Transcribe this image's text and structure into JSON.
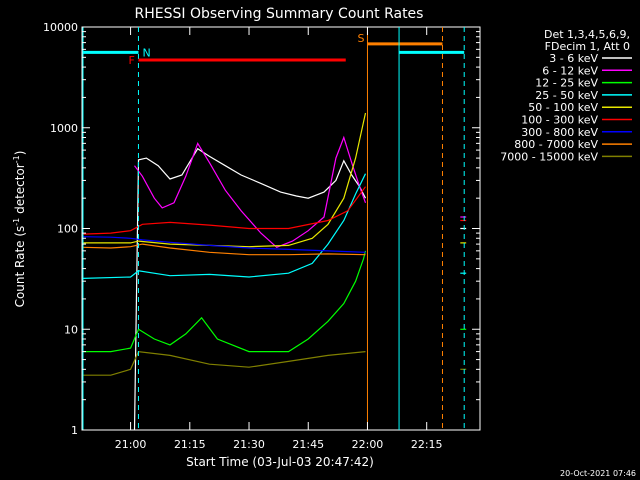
{
  "chart_data": {
    "type": "line",
    "title": "RHESSI Observing Summary Count Rates",
    "xlabel": "Start Time (03-Jul-03 20:47:42)",
    "ylabel_parts": {
      "pre": "Count Rate (s",
      "exp1": "-1",
      "mid": " detector",
      "exp2": "-1",
      "post": ")"
    },
    "y_scale": "log",
    "ylim": [
      1,
      10000
    ],
    "xlim_minutes": [
      "20:47:42",
      "22:28:30"
    ],
    "x_ticks": [
      "21:00",
      "21:15",
      "21:30",
      "21:45",
      "22:00",
      "22:15"
    ],
    "y_ticks": [
      {
        "label": "1",
        "value": 1
      },
      {
        "label": "10",
        "value": 10
      },
      {
        "label": "100",
        "value": 100
      },
      {
        "label": "1000",
        "value": 1000
      },
      {
        "label": "10000",
        "value": 10000
      }
    ],
    "legend_header": [
      "Det 1,3,4,5,6,9,",
      "FDecim 1, Att 0"
    ],
    "series": [
      {
        "name": "3 - 6 keV",
        "color": "#ffffff",
        "points": [
          [
            "21:01:00",
            1
          ],
          [
            "21:02:00",
            480
          ],
          [
            "21:04:00",
            500
          ],
          [
            "21:07:00",
            420
          ],
          [
            "21:10:00",
            310
          ],
          [
            "21:13:00",
            340
          ],
          [
            "21:17:00",
            620
          ],
          [
            "21:20:00",
            520
          ],
          [
            "21:24:00",
            420
          ],
          [
            "21:28:00",
            340
          ],
          [
            "21:33:00",
            280
          ],
          [
            "21:38:00",
            230
          ],
          [
            "21:42:00",
            210
          ],
          [
            "21:45:00",
            200
          ],
          [
            "21:49:00",
            230
          ],
          [
            "21:52:00",
            300
          ],
          [
            "21:54:00",
            470
          ],
          [
            "21:56:00",
            340
          ],
          [
            "21:58:00",
            260
          ],
          [
            "21:59:30",
            200
          ]
        ],
        "points2": [
          [
            "22:23:30",
            100
          ],
          [
            "22:25:00",
            100
          ]
        ]
      },
      {
        "name": "6 - 12 keV",
        "color": "#ff00ff",
        "points": [
          [
            "21:01:00",
            420
          ],
          [
            "21:03:00",
            330
          ],
          [
            "21:06:00",
            200
          ],
          [
            "21:08:00",
            160
          ],
          [
            "21:11:00",
            180
          ],
          [
            "21:14:00",
            330
          ],
          [
            "21:17:00",
            700
          ],
          [
            "21:20:00",
            450
          ],
          [
            "21:24:00",
            240
          ],
          [
            "21:28:00",
            150
          ],
          [
            "21:33:00",
            90
          ],
          [
            "21:37:00",
            65
          ],
          [
            "21:41:00",
            75
          ],
          [
            "21:45:00",
            95
          ],
          [
            "21:49:00",
            130
          ],
          [
            "21:52:00",
            500
          ],
          [
            "21:54:00",
            800
          ],
          [
            "21:56:00",
            450
          ],
          [
            "21:58:00",
            260
          ],
          [
            "21:59:30",
            180
          ]
        ],
        "points2": [
          [
            "22:23:30",
            130
          ],
          [
            "22:25:00",
            130
          ]
        ]
      },
      {
        "name": "12 - 25 keV",
        "color": "#00ff00",
        "points": [
          [
            "20:48:00",
            6
          ],
          [
            "20:55:00",
            6
          ],
          [
            "21:00:00",
            6.5
          ],
          [
            "21:02:00",
            10
          ],
          [
            "21:06:00",
            8
          ],
          [
            "21:10:00",
            7
          ],
          [
            "21:14:00",
            9
          ],
          [
            "21:18:00",
            13
          ],
          [
            "21:22:00",
            8
          ],
          [
            "21:30:00",
            6
          ],
          [
            "21:40:00",
            6
          ],
          [
            "21:45:00",
            8
          ],
          [
            "21:50:00",
            12
          ],
          [
            "21:54:00",
            18
          ],
          [
            "21:57:00",
            30
          ],
          [
            "21:59:00",
            50
          ],
          [
            "21:59:30",
            60
          ]
        ],
        "points2": [
          [
            "22:23:30",
            10
          ],
          [
            "22:25:00",
            10
          ]
        ]
      },
      {
        "name": "25 - 50 keV",
        "color": "#00ffff",
        "points": [
          [
            "20:48:00",
            32
          ],
          [
            "21:00:00",
            33
          ],
          [
            "21:02:00",
            38
          ],
          [
            "21:10:00",
            34
          ],
          [
            "21:20:00",
            35
          ],
          [
            "21:30:00",
            33
          ],
          [
            "21:40:00",
            36
          ],
          [
            "21:46:00",
            45
          ],
          [
            "21:50:00",
            70
          ],
          [
            "21:54:00",
            120
          ],
          [
            "21:57:00",
            220
          ],
          [
            "21:59:30",
            350
          ]
        ],
        "points2": [
          [
            "22:23:30",
            36
          ],
          [
            "22:25:00",
            36
          ]
        ]
      },
      {
        "name": "50 - 100 keV",
        "color": "#e8e800",
        "points": [
          [
            "20:48:00",
            72
          ],
          [
            "21:00:00",
            72
          ],
          [
            "21:02:00",
            75
          ],
          [
            "21:10:00",
            70
          ],
          [
            "21:20:00",
            68
          ],
          [
            "21:30:00",
            66
          ],
          [
            "21:40:00",
            68
          ],
          [
            "21:46:00",
            80
          ],
          [
            "21:50:00",
            110
          ],
          [
            "21:54:00",
            200
          ],
          [
            "21:57:00",
            500
          ],
          [
            "21:59:30",
            1400
          ]
        ],
        "points2": [
          [
            "22:23:30",
            72
          ],
          [
            "22:25:00",
            72
          ]
        ]
      },
      {
        "name": "100 - 300 keV",
        "color": "#ff0000",
        "points": [
          [
            "20:48:00",
            88
          ],
          [
            "20:55:00",
            90
          ],
          [
            "21:00:00",
            95
          ],
          [
            "21:03:00",
            110
          ],
          [
            "21:10:00",
            115
          ],
          [
            "21:20:00",
            108
          ],
          [
            "21:30:00",
            100
          ],
          [
            "21:40:00",
            100
          ],
          [
            "21:50:00",
            120
          ],
          [
            "21:55:00",
            150
          ],
          [
            "21:59:30",
            260
          ]
        ],
        "points2": [
          [
            "22:23:30",
            120
          ],
          [
            "22:25:00",
            120
          ]
        ]
      },
      {
        "name": "300 - 800 keV",
        "color": "#0000ff",
        "points": [
          [
            "20:48:00",
            83
          ],
          [
            "20:55:00",
            82
          ],
          [
            "21:00:00",
            80
          ],
          [
            "21:03:00",
            77
          ],
          [
            "21:10:00",
            73
          ],
          [
            "21:20:00",
            68
          ],
          [
            "21:30:00",
            64
          ],
          [
            "21:40:00",
            62
          ],
          [
            "21:50:00",
            60
          ],
          [
            "21:59:30",
            58
          ]
        ],
        "points2": []
      },
      {
        "name": "800 - 7000 keV",
        "color": "#ff8000",
        "points": [
          [
            "20:48:00",
            65
          ],
          [
            "20:55:00",
            64
          ],
          [
            "21:00:00",
            66
          ],
          [
            "21:03:00",
            70
          ],
          [
            "21:10:00",
            64
          ],
          [
            "21:20:00",
            58
          ],
          [
            "21:30:00",
            55
          ],
          [
            "21:40:00",
            55
          ],
          [
            "21:50:00",
            56
          ],
          [
            "21:59:30",
            55
          ]
        ],
        "points2": []
      },
      {
        "name": "7000 - 15000 keV",
        "color": "#808000",
        "points": [
          [
            "20:48:00",
            3.5
          ],
          [
            "20:55:00",
            3.5
          ],
          [
            "21:00:00",
            4
          ],
          [
            "21:02:00",
            6
          ],
          [
            "21:10:00",
            5.5
          ],
          [
            "21:20:00",
            4.5
          ],
          [
            "21:30:00",
            4.2
          ],
          [
            "21:40:00",
            4.8
          ],
          [
            "21:50:00",
            5.5
          ],
          [
            "21:59:30",
            6
          ]
        ],
        "points2": [
          [
            "22:23:30",
            4
          ],
          [
            "22:25:00",
            4
          ]
        ]
      }
    ],
    "flags": [
      {
        "label": "N",
        "color": "#00ffff",
        "x_start": "20:48:00",
        "x_end": "21:02:00",
        "y": 5600,
        "dashed_at": "21:02:00"
      },
      {
        "label": "F",
        "color": "#ff0000",
        "x_start": "21:02:00",
        "x_end": "21:54:30",
        "y": 4700
      },
      {
        "label": "S",
        "color": "#ff8000",
        "x_start": "22:00:00",
        "x_end": "22:19:00",
        "y": 6800,
        "solid_at": "22:00:00",
        "dashed_at": "22:19:00"
      }
    ],
    "extra_cyan_segment": {
      "x_start": "22:08:00",
      "x_end": "22:24:30",
      "y": 5600,
      "solid_at": "22:08:00",
      "dashed_at": "22:24:30"
    },
    "timestamp": "20-Oct-2021 07:46"
  }
}
